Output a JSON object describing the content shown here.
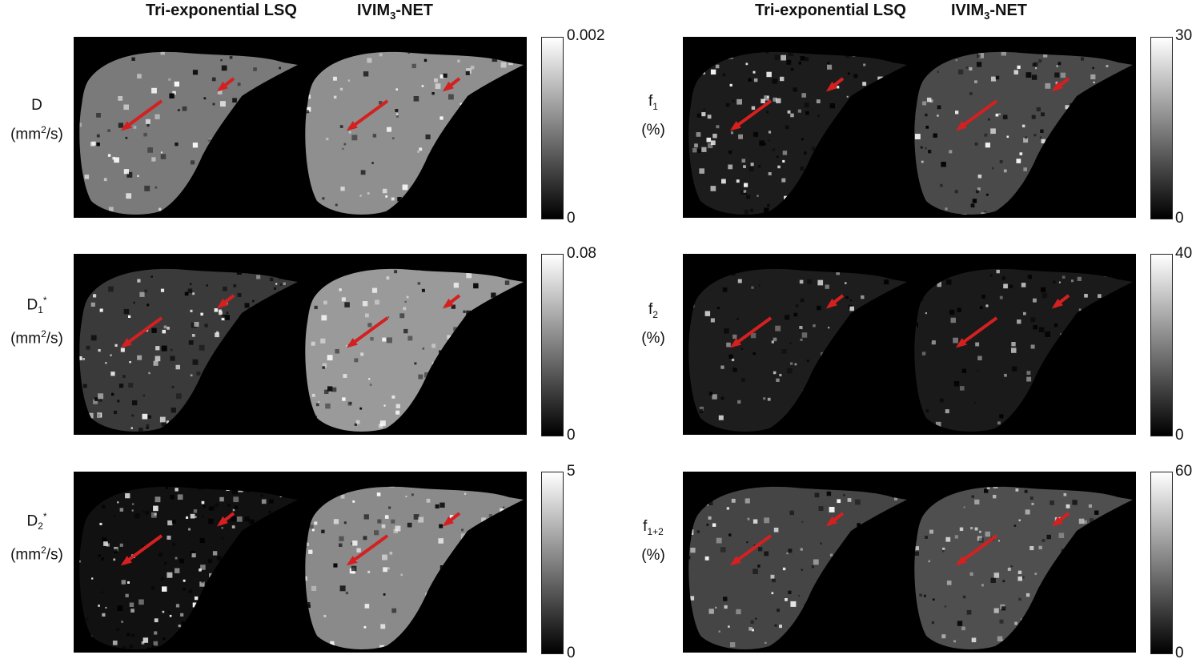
{
  "headers": {
    "lsq": "Tri-exponential LSQ",
    "net_prefix": "IVIM",
    "net_sub": "3",
    "net_suffix": "-NET"
  },
  "left": {
    "rows": [
      {
        "sym": "D",
        "sub": "",
        "sup": "",
        "unit_pre": "(mm",
        "unit_sup": "2",
        "unit_post": "/s)",
        "cbar_max": "0.002",
        "cbar_min": "0"
      },
      {
        "sym": "D",
        "sub": "1",
        "sup": "*",
        "unit_pre": "(mm",
        "unit_sup": "2",
        "unit_post": "/s)",
        "cbar_max": "0.08",
        "cbar_min": "0"
      },
      {
        "sym": "D",
        "sub": "2",
        "sup": "*",
        "unit_pre": "(mm",
        "unit_sup": "2",
        "unit_post": "/s)",
        "cbar_max": "5",
        "cbar_min": "0"
      }
    ]
  },
  "right": {
    "rows": [
      {
        "sym": "f",
        "sub": "1",
        "unit": "(%)",
        "cbar_max": "30",
        "cbar_min": "0"
      },
      {
        "sym": "f",
        "sub": "2",
        "unit": "(%)",
        "cbar_max": "40",
        "cbar_min": "0"
      },
      {
        "sym": "f",
        "sub": "1+2",
        "unit": "(%)",
        "cbar_max": "60",
        "cbar_min": "0"
      }
    ]
  },
  "colors": {
    "arrow": "#d42020",
    "background": "#000000"
  }
}
